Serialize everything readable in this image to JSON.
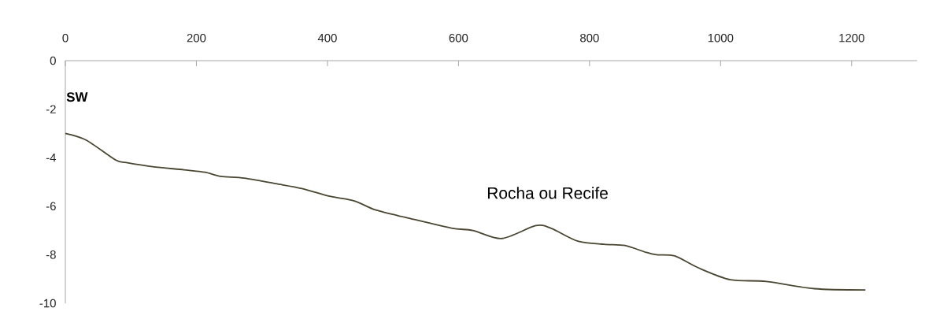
{
  "chart_data": {
    "type": "line",
    "x": [
      0,
      32,
      77,
      93,
      133,
      181,
      213,
      237,
      273,
      321,
      361,
      405,
      441,
      474,
      522,
      589,
      622,
      666,
      718,
      742,
      782,
      822,
      854,
      886,
      902,
      930,
      966,
      1015,
      1070,
      1143,
      1221
    ],
    "series": [
      {
        "color": "#4a4632",
        "values": [
          -3.0,
          -3.28,
          -4.1,
          -4.2,
          -4.37,
          -4.5,
          -4.6,
          -4.77,
          -4.84,
          -5.07,
          -5.27,
          -5.6,
          -5.78,
          -6.16,
          -6.48,
          -6.9,
          -7.0,
          -7.33,
          -6.8,
          -6.92,
          -7.44,
          -7.57,
          -7.62,
          -7.9,
          -8.0,
          -8.05,
          -8.54,
          -9.03,
          -9.1,
          -9.4,
          -9.45
        ]
      }
    ],
    "xlim": [
      0,
      1300
    ],
    "xticks": [
      0,
      200,
      400,
      600,
      800,
      1000,
      1200
    ],
    "ylim": [
      -10,
      0
    ],
    "yticks": [
      -10,
      -8,
      -6,
      -4,
      -2,
      0
    ],
    "annotations": [
      "SW",
      "Rocha ou Recife"
    ],
    "grid": false,
    "marker": "none",
    "line_style": "solid"
  }
}
